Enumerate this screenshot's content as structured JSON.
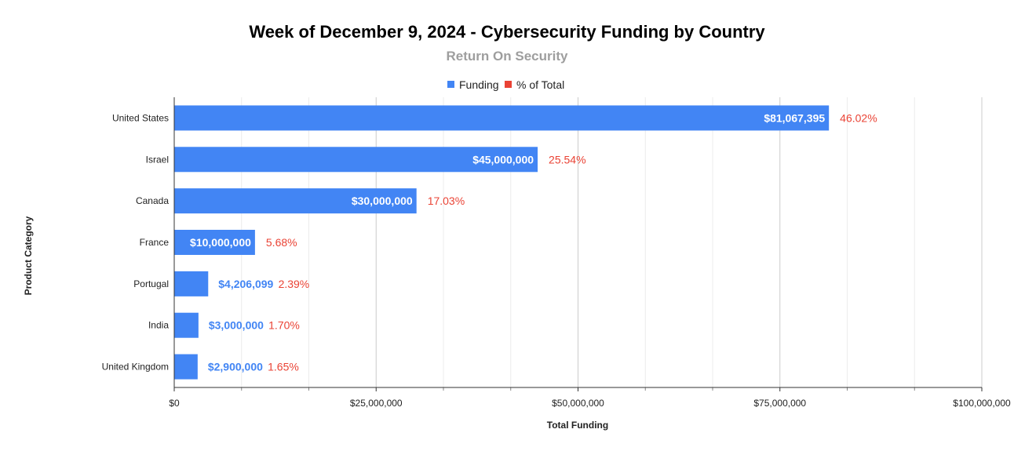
{
  "chart_data": {
    "type": "bar",
    "orientation": "horizontal",
    "title": "Week of December 9, 2024 - Cybersecurity Funding by Country",
    "subtitle": "Return On Security",
    "xlabel": "Total Funding",
    "ylabel": "Product Category",
    "xlim": [
      0,
      100000000
    ],
    "x_ticks": [
      {
        "value": 0,
        "label": "$0"
      },
      {
        "value": 25000000,
        "label": "$25,000,000"
      },
      {
        "value": 50000000,
        "label": "$50,000,000"
      },
      {
        "value": 75000000,
        "label": "$75,000,000"
      },
      {
        "value": 100000000,
        "label": "$100,000,000"
      }
    ],
    "grid": true,
    "legend_position": "top-center",
    "legend": [
      {
        "name": "Funding",
        "color": "#4285f4"
      },
      {
        "name": "% of Total",
        "color": "#ea4335"
      }
    ],
    "categories": [
      "United States",
      "Israel",
      "Canada",
      "France",
      "Portugal",
      "India",
      "United Kingdom"
    ],
    "series": [
      {
        "name": "Funding",
        "color": "#4285f4",
        "values": [
          81067395,
          45000000,
          30000000,
          10000000,
          4206099,
          3000000,
          2900000
        ],
        "labels": [
          "$81,067,395",
          "$45,000,000",
          "$30,000,000",
          "$10,000,000",
          "$4,206,099",
          "$3,000,000",
          "$2,900,000"
        ]
      },
      {
        "name": "% of Total",
        "color": "#ea4335",
        "values": [
          46.02,
          25.54,
          17.03,
          5.68,
          2.39,
          1.7,
          1.65
        ],
        "labels": [
          "46.02%",
          "25.54%",
          "17.03%",
          "5.68%",
          "2.39%",
          "1.70%",
          "1.65%"
        ]
      }
    ]
  }
}
